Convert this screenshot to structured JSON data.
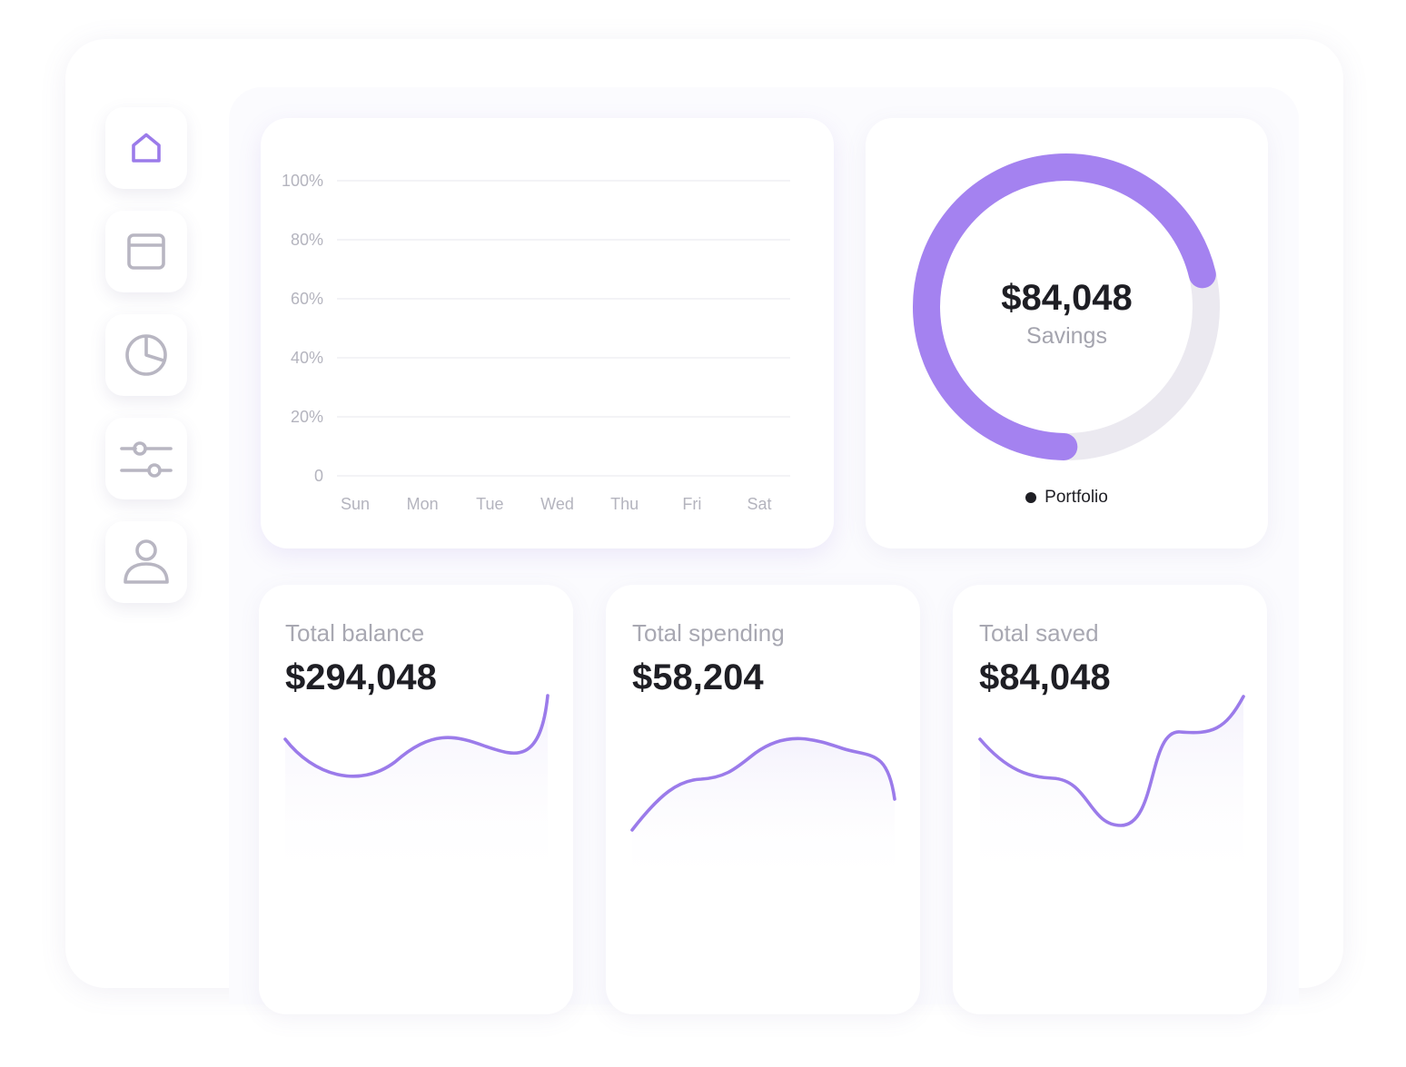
{
  "nav": {
    "items": [
      {
        "name": "home",
        "icon": "home-icon",
        "active": true
      },
      {
        "name": "calendar",
        "icon": "calendar-icon",
        "active": false
      },
      {
        "name": "reports",
        "icon": "pie-chart-icon",
        "active": false
      },
      {
        "name": "filters",
        "icon": "sliders-icon",
        "active": false
      },
      {
        "name": "profile",
        "icon": "user-icon",
        "active": false
      }
    ],
    "active_color": "#9b7bea",
    "inactive_color": "#b8b6c2"
  },
  "weekly_chart": {
    "chart_data": {
      "type": "bar",
      "categories": [
        "Sun",
        "Mon",
        "Tue",
        "Wed",
        "Thu",
        "Fri",
        "Sat"
      ],
      "y_ticks": [
        "0",
        "20%",
        "40%",
        "60%",
        "80%",
        "100%"
      ],
      "ylim": [
        0,
        100
      ],
      "grid": true
    }
  },
  "savings": {
    "value": "$84,048",
    "label": "Savings",
    "legend_label": "Portfolio",
    "progress": 0.71,
    "ring_color": "#a482f0",
    "track_color": "#ebe9f0"
  },
  "stats": [
    {
      "title": "Total balance",
      "value": "$294,048"
    },
    {
      "title": "Total spending",
      "value": "$58,204"
    },
    {
      "title": "Total saved",
      "value": "$84,048"
    }
  ],
  "accent_color": "#9b7bea"
}
